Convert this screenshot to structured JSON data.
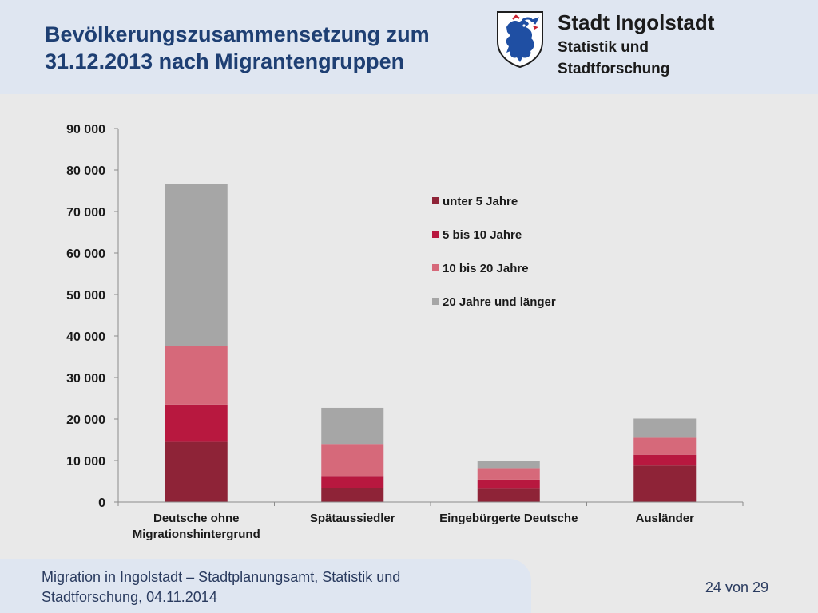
{
  "header": {
    "title_line1": "Bevölkerungszusammensetzung zum",
    "title_line2": "31.12.2013 nach Migrantengruppen",
    "org_name": "Stadt Ingolstadt",
    "org_dept": "Statistik und Stadtforschung",
    "logo_icon": "ingolstadt-panther-coat-of-arms-icon"
  },
  "footer": {
    "source": "Migration in Ingolstadt – Stadtplanungsamt, Statistik und Stadtforschung, 04.11.2014",
    "page": "24 von 29"
  },
  "chart_data": {
    "type": "bar",
    "stacked": true,
    "title": "",
    "xlabel": "",
    "ylabel": "",
    "ylim": [
      0,
      90000
    ],
    "yticks": [
      0,
      10000,
      20000,
      30000,
      40000,
      50000,
      60000,
      70000,
      80000,
      90000
    ],
    "ytick_labels": [
      "0",
      "10 000",
      "20 000",
      "30 000",
      "40 000",
      "50 000",
      "60 000",
      "70 000",
      "80 000",
      "90 000"
    ],
    "categories": [
      [
        "Deutsche ohne",
        "Migrationshintergrund"
      ],
      [
        "Spätaussiedler"
      ],
      [
        "Eingebürgerte Deutsche"
      ],
      [
        "Ausländer"
      ]
    ],
    "series": [
      {
        "name": "unter 5 Jahre",
        "color": "#8e2337",
        "values": [
          14500,
          3300,
          3200,
          8800
        ]
      },
      {
        "name": "5 bis 10 Jahre",
        "color": "#b8183f",
        "values": [
          9000,
          3000,
          2200,
          2600
        ]
      },
      {
        "name": "10 bis 20 Jahre",
        "color": "#d6697a",
        "values": [
          14000,
          7700,
          2800,
          4100
        ]
      },
      {
        "name": "20 Jahre und länger",
        "color": "#a6a6a6",
        "values": [
          39200,
          8700,
          1800,
          4600
        ]
      }
    ],
    "grid": false,
    "legend_position": "right-inside-plot"
  }
}
